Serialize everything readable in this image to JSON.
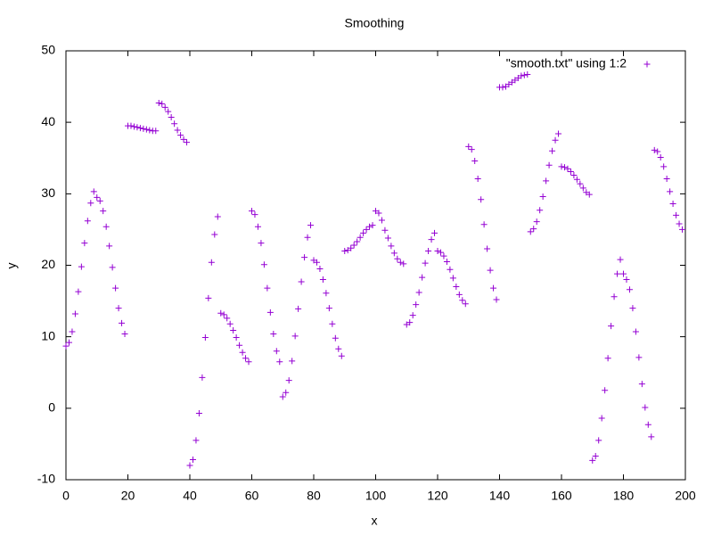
{
  "chart_data": {
    "type": "scatter",
    "title": "Smoothing",
    "x_label": "x",
    "y_label": "y",
    "legend_position": "top-right",
    "marker": "+",
    "series": [
      {
        "name": "\"smooth.txt\" using 1:2",
        "color": "#9400d3",
        "x": [
          0,
          1,
          2,
          3,
          4,
          5,
          6,
          7,
          8,
          9,
          10,
          11,
          12,
          13,
          14,
          15,
          16,
          17,
          18,
          19,
          20,
          21,
          22,
          23,
          24,
          25,
          26,
          27,
          28,
          29,
          30,
          31,
          32,
          33,
          34,
          35,
          36,
          37,
          38,
          39,
          40,
          41,
          42,
          43,
          44,
          45,
          46,
          47,
          48,
          49,
          50,
          51,
          52,
          53,
          54,
          55,
          56,
          57,
          58,
          59,
          60,
          61,
          62,
          63,
          64,
          65,
          66,
          67,
          68,
          69,
          70,
          71,
          72,
          73,
          74,
          75,
          76,
          77,
          78,
          79,
          80,
          81,
          82,
          83,
          84,
          85,
          86,
          87,
          88,
          89,
          90,
          91,
          92,
          93,
          94,
          95,
          96,
          97,
          98,
          99,
          100,
          101,
          102,
          103,
          104,
          105,
          106,
          107,
          108,
          109,
          110,
          111,
          112,
          113,
          114,
          115,
          116,
          117,
          118,
          119,
          120,
          121,
          122,
          123,
          124,
          125,
          126,
          127,
          128,
          129,
          130,
          131,
          132,
          133,
          134,
          135,
          136,
          137,
          138,
          139,
          140,
          141,
          142,
          143,
          144,
          145,
          146,
          147,
          148,
          149,
          150,
          151,
          152,
          153,
          154,
          155,
          156,
          157,
          158,
          159,
          160,
          161,
          162,
          163,
          164,
          165,
          166,
          167,
          168,
          169,
          170,
          171,
          172,
          173,
          174,
          175,
          176,
          177,
          178,
          179,
          180,
          181,
          182,
          183,
          184,
          185,
          186,
          187,
          188,
          189,
          190,
          191,
          192,
          193,
          194,
          195,
          196,
          197,
          198,
          199
        ],
        "values": [
          8.7,
          9.2,
          10.7,
          13.2,
          16.3,
          19.8,
          23.1,
          26.2,
          28.7,
          30.3,
          29.5,
          29.0,
          27.6,
          25.4,
          22.7,
          19.7,
          16.8,
          14.0,
          11.9,
          10.4,
          39.5,
          39.5,
          39.4,
          39.3,
          39.2,
          39.1,
          39.0,
          38.9,
          38.8,
          38.8,
          42.7,
          42.6,
          42.1,
          41.5,
          40.7,
          39.8,
          38.9,
          38.2,
          37.6,
          37.2,
          -8.0,
          -7.2,
          -4.5,
          -0.7,
          4.3,
          9.9,
          15.4,
          20.4,
          24.3,
          26.8,
          13.3,
          13.1,
          12.6,
          11.8,
          10.9,
          9.9,
          8.8,
          7.8,
          7.0,
          6.5,
          27.6,
          27.1,
          25.4,
          23.1,
          20.1,
          16.8,
          13.4,
          10.4,
          8.0,
          6.5,
          1.6,
          2.2,
          3.9,
          6.6,
          10.1,
          13.9,
          17.7,
          21.1,
          23.9,
          25.6,
          20.7,
          20.4,
          19.5,
          18.0,
          16.1,
          14.0,
          11.8,
          9.8,
          8.3,
          7.3,
          22.0,
          22.1,
          22.4,
          22.8,
          23.3,
          23.9,
          24.5,
          25.0,
          25.4,
          25.6,
          27.6,
          27.3,
          26.3,
          24.9,
          23.8,
          22.7,
          21.7,
          20.9,
          20.4,
          20.2,
          11.7,
          12.0,
          13.0,
          14.5,
          16.2,
          18.3,
          20.3,
          22.0,
          23.6,
          24.5,
          22.0,
          21.8,
          21.3,
          20.5,
          19.4,
          18.2,
          17.0,
          15.9,
          15.1,
          14.6,
          36.6,
          36.2,
          34.6,
          32.1,
          29.2,
          25.7,
          22.3,
          19.3,
          16.8,
          15.2,
          44.9,
          44.9,
          45.0,
          45.3,
          45.6,
          45.9,
          46.2,
          46.5,
          46.6,
          46.7,
          24.7,
          25.1,
          26.1,
          27.7,
          29.6,
          31.8,
          34.0,
          36.0,
          37.5,
          38.4,
          33.8,
          33.7,
          33.5,
          33.1,
          32.6,
          32.0,
          31.4,
          30.8,
          30.2,
          29.9,
          -7.3,
          -6.7,
          -4.5,
          -1.4,
          2.5,
          7.0,
          11.5,
          15.6,
          18.8,
          20.8,
          18.8,
          18.0,
          16.6,
          14.0,
          10.7,
          7.1,
          3.4,
          0.1,
          -2.3,
          -4.0,
          36.1,
          35.9,
          35.1,
          33.8,
          32.1,
          30.3,
          28.6,
          27.0,
          25.8,
          25.0
        ]
      }
    ],
    "xlim": [
      0,
      200
    ],
    "xticks": [
      0,
      20,
      40,
      60,
      80,
      100,
      120,
      140,
      160,
      180,
      200
    ],
    "ylim": [
      -10,
      50
    ],
    "yticks": [
      -10,
      0,
      10,
      20,
      30,
      40,
      50
    ],
    "grid": false
  }
}
